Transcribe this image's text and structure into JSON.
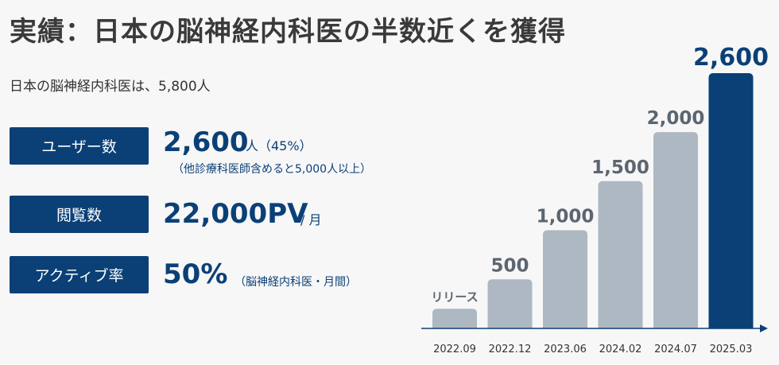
{
  "page": {
    "title": "実績：日本の脳神経内科医の半数近くを獲得",
    "subtitle": "日本の脳神経内科医は、5,800人"
  },
  "metrics": [
    {
      "label": "ユーザー数",
      "value": "2,600",
      "unit": "人（45%）",
      "note": "（他診療科医師含めると5,000人以上）"
    },
    {
      "label": "閲覧数",
      "value": "22,000PV",
      "unit": "/ 月",
      "note": ""
    },
    {
      "label": "アクティブ率",
      "value": "50%",
      "unit": "（脳神経内科医・月間）",
      "note": ""
    }
  ],
  "chart_data": {
    "type": "bar",
    "categories": [
      "2022.09",
      "2022.12",
      "2023.06",
      "2024.02",
      "2024.07",
      "2025.03"
    ],
    "values": [
      200,
      500,
      1000,
      1500,
      2000,
      2600
    ],
    "data_labels": [
      "リリース",
      "500",
      "1,000",
      "1,500",
      "2,000",
      "2,600"
    ],
    "highlight_index": 5,
    "colors": {
      "bar": "#aeb8c2",
      "highlight": "#0b4077",
      "label": "#5c6670",
      "axis": "#0b4077"
    },
    "ylim": [
      0,
      2600
    ],
    "grid": false
  }
}
